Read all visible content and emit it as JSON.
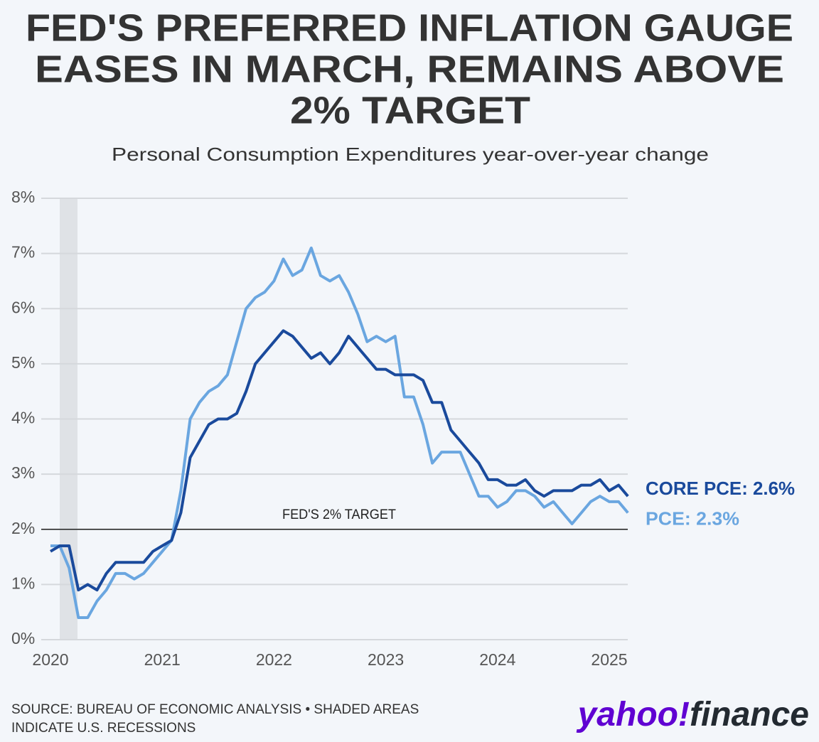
{
  "chart_data": {
    "type": "line",
    "title": [
      "FED'S PREFERRED INFLATION GAUGE",
      "EASES IN MARCH, REMAINS ABOVE",
      "2% TARGET"
    ],
    "subtitle": "Personal Consumption Expenditures year-over-year change",
    "categories": [
      "2020",
      null,
      null,
      null,
      null,
      null,
      null,
      null,
      null,
      null,
      null,
      null,
      "2021",
      null,
      null,
      null,
      null,
      null,
      null,
      null,
      null,
      null,
      null,
      null,
      "2022",
      null,
      null,
      null,
      null,
      null,
      null,
      null,
      null,
      null,
      null,
      null,
      "2023",
      null,
      null,
      null,
      null,
      null,
      null,
      null,
      null,
      null,
      null,
      null,
      "2024",
      null,
      null,
      null,
      null,
      null,
      null,
      null,
      null,
      null,
      null,
      null,
      "2025",
      null,
      null
    ],
    "series": [
      {
        "name": "CORE PCE: 2.6%",
        "color": "#1a4a9c",
        "values": [
          1.6,
          1.7,
          1.7,
          0.9,
          1.0,
          0.9,
          1.2,
          1.4,
          1.4,
          1.4,
          1.4,
          1.6,
          1.7,
          1.8,
          2.3,
          3.3,
          3.6,
          3.9,
          4.0,
          4.0,
          4.1,
          4.5,
          5.0,
          5.2,
          5.4,
          5.6,
          5.5,
          5.3,
          5.1,
          5.2,
          5.0,
          5.2,
          5.5,
          5.3,
          5.1,
          4.9,
          4.9,
          4.8,
          4.8,
          4.8,
          4.7,
          4.3,
          4.3,
          3.8,
          3.6,
          3.4,
          3.2,
          2.9,
          2.9,
          2.8,
          2.8,
          2.9,
          2.7,
          2.6,
          2.7,
          2.7,
          2.7,
          2.8,
          2.8,
          2.9,
          2.7,
          2.8,
          2.6
        ]
      },
      {
        "name": "PCE: 2.3%",
        "color": "#6aa6e0",
        "values": [
          1.7,
          1.7,
          1.3,
          0.4,
          0.4,
          0.7,
          0.9,
          1.2,
          1.2,
          1.1,
          1.2,
          1.4,
          1.6,
          1.8,
          2.7,
          4.0,
          4.3,
          4.5,
          4.6,
          4.8,
          5.4,
          6.0,
          6.2,
          6.3,
          6.5,
          6.9,
          6.6,
          6.7,
          7.1,
          6.6,
          6.5,
          6.6,
          6.3,
          5.9,
          5.4,
          5.5,
          5.4,
          5.5,
          4.4,
          4.4,
          3.9,
          3.2,
          3.4,
          3.4,
          3.4,
          3.0,
          2.6,
          2.6,
          2.4,
          2.5,
          2.7,
          2.7,
          2.6,
          2.4,
          2.5,
          2.3,
          2.1,
          2.3,
          2.5,
          2.6,
          2.5,
          2.5,
          2.3
        ]
      }
    ],
    "ylim": [
      0,
      8
    ],
    "yticks": [
      {
        "value": 0,
        "label": "0%"
      },
      {
        "value": 1,
        "label": "1%"
      },
      {
        "value": 2,
        "label": "2%"
      },
      {
        "value": 3,
        "label": "3%"
      },
      {
        "value": 4,
        "label": "4%"
      },
      {
        "value": 5,
        "label": "5%"
      },
      {
        "value": 6,
        "label": "6%"
      },
      {
        "value": 7,
        "label": "7%"
      },
      {
        "value": 8,
        "label": "8%"
      }
    ],
    "grid": true,
    "target": {
      "label": "FED'S 2% TARGET",
      "value": 2
    },
    "source": [
      "SOURCE: BUREAU OF ECONOMIC ANALYSIS • SHADED AREAS",
      "INDICATE U.S. RECESSIONS"
    ],
    "logo": [
      "yahoo!",
      "finance"
    ]
  }
}
